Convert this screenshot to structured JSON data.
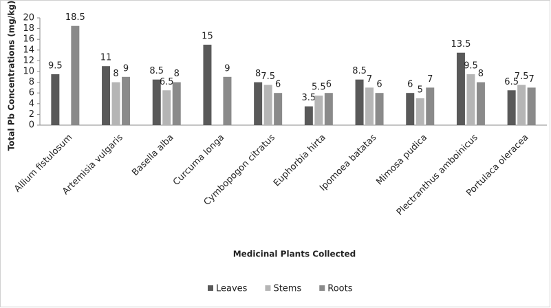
{
  "chart_data": {
    "type": "bar",
    "y_label": "Total Pb Concentrations (mg/kg)",
    "x_label": "Medicinal Plants Collected",
    "categories": [
      "Allium fistulosum",
      "Artemisia vulgaris",
      "Basella alba",
      "Curcuma longa",
      "Cymbopogon citratus",
      "Euphorbia hirta",
      "Ipomoea batatas",
      "Mimosa pudica",
      "Plectranthus amboinicus",
      "Portulaca oleracea"
    ],
    "series": [
      {
        "name": "Leaves",
        "color": "#595959",
        "values": [
          9.5,
          11,
          8.5,
          15,
          8,
          3.5,
          8.5,
          6,
          13.5,
          6.5
        ]
      },
      {
        "name": "Stems",
        "color": "#b5b5b5",
        "values": [
          null,
          8,
          6.5,
          null,
          7.5,
          5.5,
          7,
          5,
          9.5,
          7.5
        ]
      },
      {
        "name": "Roots",
        "color": "#8a8a8a",
        "values": [
          18.5,
          9,
          8,
          9,
          6,
          6,
          6,
          7,
          8,
          7
        ]
      }
    ],
    "ylim": [
      0,
      20
    ],
    "yticks": [
      0,
      2,
      4,
      6,
      8,
      10,
      12,
      14,
      16,
      18,
      20
    ],
    "grid": false,
    "legend": "bottom"
  }
}
